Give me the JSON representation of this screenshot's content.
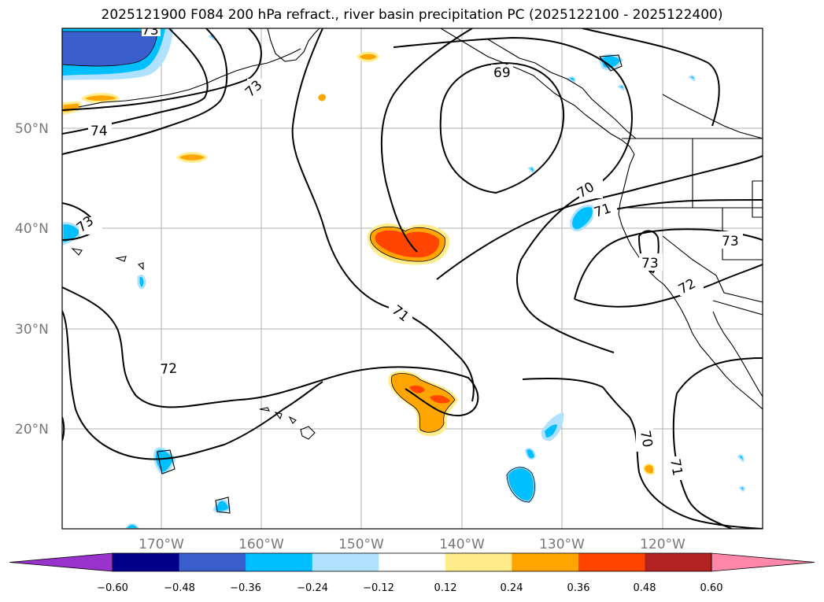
{
  "title": "2025121900 F084 200 hPa refract., river basin precipitation PC (2025122100 - 2025122400)",
  "lat_labels": [
    "50°N",
    "40°N",
    "30°N",
    "20°N"
  ],
  "lon_labels": [
    "170°W",
    "160°W",
    "150°W",
    "140°W",
    "130°W",
    "120°W"
  ],
  "contour_labels": [
    "73",
    "74",
    "73",
    "73",
    "69",
    "71",
    "70",
    "71",
    "73",
    "73",
    "72",
    "70",
    "72",
    "71"
  ],
  "colorbar": {
    "ticks": [
      "−0.60",
      "−0.48",
      "−0.36",
      "−0.24",
      "−0.12",
      "0.12",
      "0.24",
      "0.36",
      "0.48",
      "0.60"
    ],
    "colors": [
      "#9933cc",
      "#00008b",
      "#3a5fcd",
      "#00bfff",
      "#b0e2ff",
      "#ffffff",
      "#ffec8b",
      "#ffa500",
      "#ff4500",
      "#b22222",
      "#ff88aa"
    ]
  },
  "colors": {
    "neg_strong": "#3a5fcd",
    "neg_mid": "#00bfff",
    "neg_weak": "#b0e2ff",
    "pos_weak": "#ffec8b",
    "pos_mid": "#ffa500",
    "pos_strong": "#ff4500",
    "grid": "#b0b0b0"
  }
}
